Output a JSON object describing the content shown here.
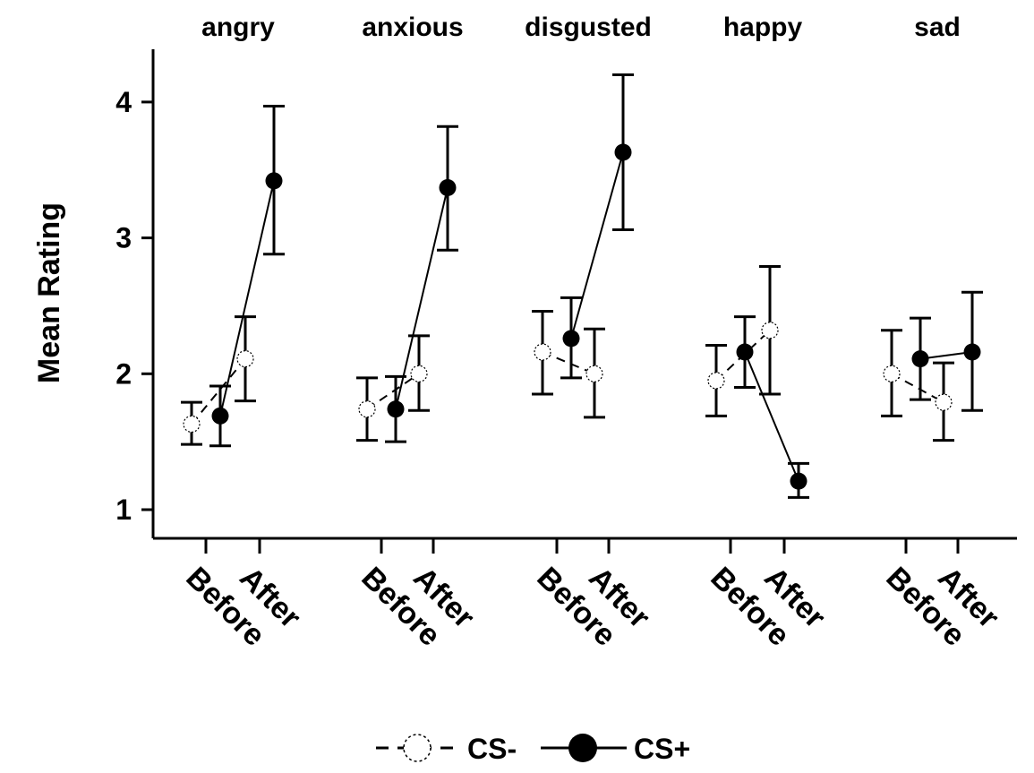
{
  "chart_data": {
    "type": "line",
    "title": "",
    "xlabel": "",
    "ylabel": "Mean Rating",
    "ylim": [
      0.8,
      4.4
    ],
    "yticks": [
      1,
      2,
      3,
      4
    ],
    "x_categories": [
      "Before",
      "After"
    ],
    "panels": [
      {
        "name": "angry",
        "series": [
          {
            "name": "CS-",
            "values": [
              1.63,
              2.11
            ],
            "error_low": [
              1.48,
              1.8
            ],
            "error_high": [
              1.79,
              2.42
            ]
          },
          {
            "name": "CS+",
            "values": [
              1.69,
              3.42
            ],
            "error_low": [
              1.47,
              2.88
            ],
            "error_high": [
              1.91,
              3.97
            ]
          }
        ]
      },
      {
        "name": "anxious",
        "series": [
          {
            "name": "CS-",
            "values": [
              1.74,
              2.0
            ],
            "error_low": [
              1.51,
              1.73
            ],
            "error_high": [
              1.97,
              2.28
            ]
          },
          {
            "name": "CS+",
            "values": [
              1.74,
              3.37
            ],
            "error_low": [
              1.5,
              2.91
            ],
            "error_high": [
              1.98,
              3.82
            ]
          }
        ]
      },
      {
        "name": "disgusted",
        "series": [
          {
            "name": "CS-",
            "values": [
              2.16,
              2.0
            ],
            "error_low": [
              1.85,
              1.68
            ],
            "error_high": [
              2.46,
              2.33
            ]
          },
          {
            "name": "CS+",
            "values": [
              2.26,
              3.63
            ],
            "error_low": [
              1.97,
              3.06
            ],
            "error_high": [
              2.56,
              4.2
            ]
          }
        ]
      },
      {
        "name": "happy",
        "series": [
          {
            "name": "CS-",
            "values": [
              1.95,
              2.32
            ],
            "error_low": [
              1.69,
              1.85
            ],
            "error_high": [
              2.21,
              2.79
            ]
          },
          {
            "name": "CS+",
            "values": [
              2.16,
              1.21
            ],
            "error_low": [
              1.9,
              1.09
            ],
            "error_high": [
              2.42,
              1.34
            ]
          }
        ]
      },
      {
        "name": "sad",
        "series": [
          {
            "name": "CS-",
            "values": [
              2.0,
              1.79
            ],
            "error_low": [
              1.69,
              1.51
            ],
            "error_high": [
              2.32,
              2.08
            ]
          },
          {
            "name": "CS+",
            "values": [
              2.11,
              2.16
            ],
            "error_low": [
              1.81,
              1.73
            ],
            "error_high": [
              2.41,
              2.6
            ]
          }
        ]
      }
    ],
    "legend": {
      "placement": "bottom",
      "entries": [
        {
          "name": "CS-",
          "marker": "open-circle",
          "line": "dashed"
        },
        {
          "name": "CS+",
          "marker": "filled-circle",
          "line": "solid"
        }
      ]
    },
    "grid": false
  }
}
